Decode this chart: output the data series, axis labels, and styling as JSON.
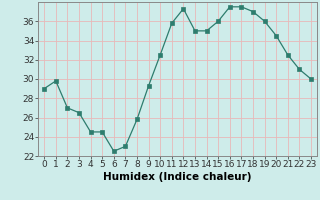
{
  "x": [
    0,
    1,
    2,
    3,
    4,
    5,
    6,
    7,
    8,
    9,
    10,
    11,
    12,
    13,
    14,
    15,
    16,
    17,
    18,
    19,
    20,
    21,
    22,
    23
  ],
  "y": [
    29.0,
    29.8,
    27.0,
    26.5,
    24.5,
    24.5,
    22.5,
    23.0,
    25.8,
    29.3,
    32.5,
    35.8,
    37.3,
    35.0,
    35.0,
    36.0,
    37.5,
    37.5,
    37.0,
    36.0,
    34.5,
    32.5,
    31.0,
    30.0
  ],
  "line_color": "#2e7d6e",
  "marker_color": "#2e7d6e",
  "bg_color": "#ceecea",
  "grid_color": "#e8b8b8",
  "xlabel": "Humidex (Indice chaleur)",
  "ylim": [
    22,
    38
  ],
  "xlim_min": -0.5,
  "xlim_max": 23.5,
  "yticks": [
    22,
    24,
    26,
    28,
    30,
    32,
    34,
    36
  ],
  "xticks": [
    0,
    1,
    2,
    3,
    4,
    5,
    6,
    7,
    8,
    9,
    10,
    11,
    12,
    13,
    14,
    15,
    16,
    17,
    18,
    19,
    20,
    21,
    22,
    23
  ],
  "label_fontsize": 7.5,
  "tick_fontsize": 6.5
}
